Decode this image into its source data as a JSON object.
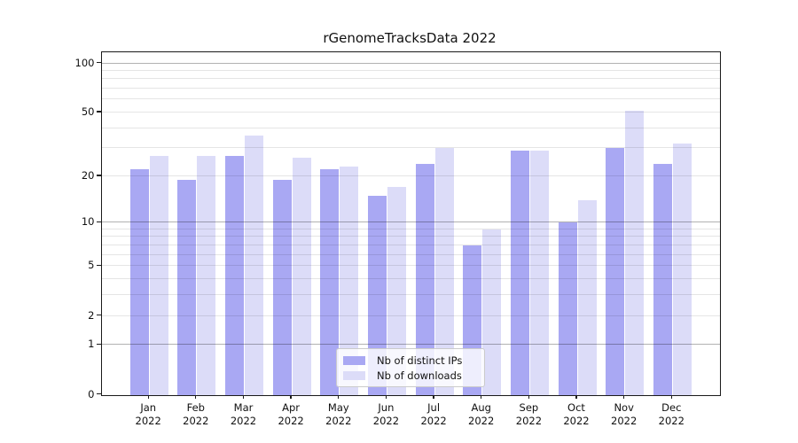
{
  "title": "rGenomeTracksData 2022",
  "year": "2022",
  "months": [
    "Jan",
    "Feb",
    "Mar",
    "Apr",
    "May",
    "Jun",
    "Jul",
    "Aug",
    "Sep",
    "Oct",
    "Nov",
    "Dec"
  ],
  "chart_data": {
    "type": "bar",
    "title": "rGenomeTracksData 2022",
    "categories": [
      "Jan 2022",
      "Feb 2022",
      "Mar 2022",
      "Apr 2022",
      "May 2022",
      "Jun 2022",
      "Jul 2022",
      "Aug 2022",
      "Sep 2022",
      "Oct 2022",
      "Nov 2022",
      "Dec 2022"
    ],
    "series": [
      {
        "name": "Nb of distinct IPs",
        "color": "#a9a8f3",
        "values": [
          22,
          19,
          27,
          19,
          22,
          15,
          24,
          7,
          29,
          10,
          30,
          24
        ]
      },
      {
        "name": "Nb of downloads",
        "color": "#dcdcf8",
        "values": [
          27,
          27,
          36,
          26,
          23,
          17,
          30,
          9,
          29,
          14,
          51,
          32
        ]
      }
    ],
    "xlabel": "",
    "ylabel": "",
    "yscale": "symlog (log10 of 1+value, linear 0-1)",
    "ylim": [
      0,
      116
    ],
    "y_ticks": [
      0,
      1,
      2,
      5,
      10,
      20,
      50,
      100
    ],
    "y_major_gridlines": [
      1,
      10,
      100
    ],
    "y_minor_gridlines": [
      2,
      3,
      4,
      5,
      6,
      7,
      8,
      9,
      20,
      30,
      40,
      50,
      60,
      70,
      80,
      90
    ],
    "grid": true,
    "legend_position": "lower center"
  },
  "legend": {
    "items": [
      {
        "label": "Nb of distinct IPs"
      },
      {
        "label": "Nb of downloads"
      }
    ]
  },
  "colors": {
    "ips_bar": "#a9a8f3",
    "downloads_bar": "#dcdcf8",
    "spine": "#1a1a1a",
    "grid_major": "rgba(0,0,0,0.30)",
    "grid_minor": "rgba(0,0,0,0.10)",
    "background": "#ffffff"
  }
}
